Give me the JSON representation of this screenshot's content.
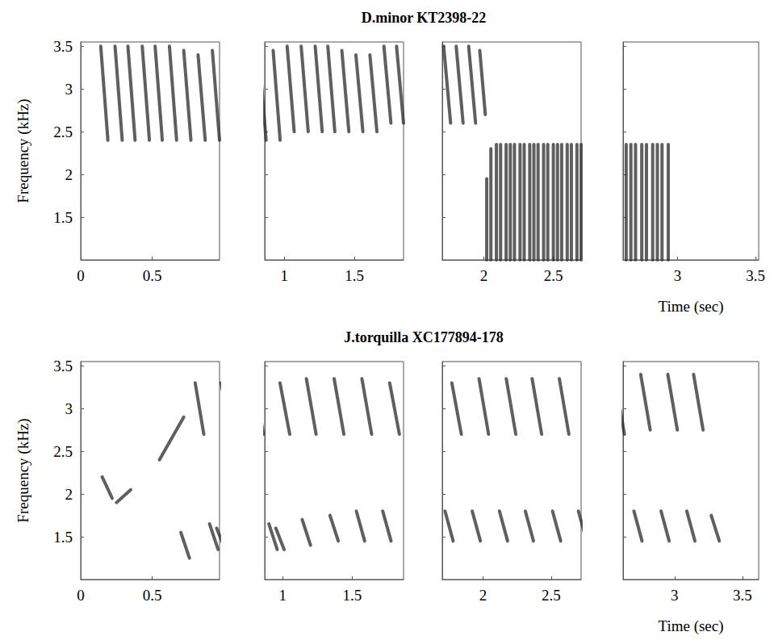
{
  "chart_data": [
    {
      "type": "spectrogram",
      "title": "D.minor KT2398-22",
      "xlabel": "Time (sec)",
      "ylabel": "Frequency (kHz)",
      "ylim": [
        1,
        3.55
      ],
      "yticks": [
        1.5,
        2,
        2.5,
        3,
        3.5
      ],
      "color": "#2a2a2a",
      "grid": false,
      "panels": [
        {
          "xlim": [
            0,
            0.97
          ],
          "xticks": [
            0,
            0.5
          ]
        },
        {
          "xlim": [
            0.86,
            1.85
          ],
          "xticks": [
            1,
            1.5
          ]
        },
        {
          "xlim": [
            1.7,
            2.7
          ],
          "xticks": [
            2,
            2.5
          ]
        },
        {
          "xlim": [
            2.65,
            3.52
          ],
          "xticks": [
            3,
            3.5
          ]
        }
      ],
      "syllables": [
        [
          0.14,
          3.5,
          0.19,
          2.4
        ],
        [
          0.24,
          3.5,
          0.29,
          2.4
        ],
        [
          0.33,
          3.5,
          0.38,
          2.4
        ],
        [
          0.43,
          3.5,
          0.48,
          2.4
        ],
        [
          0.52,
          3.5,
          0.57,
          2.4
        ],
        [
          0.62,
          3.5,
          0.67,
          2.4
        ],
        [
          0.72,
          3.45,
          0.77,
          2.4
        ],
        [
          0.82,
          3.4,
          0.87,
          2.4
        ],
        [
          0.92,
          3.45,
          0.97,
          2.4
        ],
        [
          1.02,
          3.5,
          1.07,
          2.5
        ],
        [
          1.12,
          3.5,
          1.17,
          2.5
        ],
        [
          1.22,
          3.5,
          1.27,
          2.5
        ],
        [
          1.31,
          3.5,
          1.36,
          2.5
        ],
        [
          1.41,
          3.45,
          1.46,
          2.5
        ],
        [
          1.51,
          3.4,
          1.56,
          2.5
        ],
        [
          1.61,
          3.4,
          1.66,
          2.5
        ],
        [
          1.71,
          3.5,
          1.76,
          2.6
        ],
        [
          1.8,
          3.5,
          1.85,
          2.6
        ],
        [
          1.89,
          3.5,
          1.94,
          2.6
        ],
        [
          1.97,
          3.45,
          2.01,
          2.7
        ],
        [
          2.02,
          1.0,
          2.02,
          1.95
        ],
        [
          2.05,
          1.0,
          2.05,
          2.3
        ],
        [
          2.09,
          1.0,
          2.09,
          2.35
        ],
        [
          2.12,
          1.0,
          2.12,
          2.35
        ],
        [
          2.16,
          1.0,
          2.16,
          2.35
        ],
        [
          2.19,
          1.0,
          2.19,
          2.35
        ],
        [
          2.22,
          1.0,
          2.22,
          2.35
        ],
        [
          2.26,
          1.0,
          2.26,
          2.35
        ],
        [
          2.29,
          1.0,
          2.29,
          2.35
        ],
        [
          2.33,
          1.0,
          2.33,
          2.35
        ],
        [
          2.36,
          1.0,
          2.36,
          2.35
        ],
        [
          2.39,
          1.0,
          2.39,
          2.35
        ],
        [
          2.43,
          1.0,
          2.43,
          2.35
        ],
        [
          2.46,
          1.0,
          2.46,
          2.35
        ],
        [
          2.5,
          1.0,
          2.5,
          2.35
        ],
        [
          2.53,
          1.0,
          2.53,
          2.35
        ],
        [
          2.56,
          1.0,
          2.56,
          2.35
        ],
        [
          2.6,
          1.0,
          2.6,
          2.35
        ],
        [
          2.63,
          1.0,
          2.63,
          2.35
        ],
        [
          2.67,
          1.0,
          2.67,
          2.35
        ],
        [
          2.7,
          1.0,
          2.7,
          2.35
        ],
        [
          2.73,
          1.0,
          2.73,
          2.35
        ],
        [
          2.77,
          1.0,
          2.77,
          2.35
        ],
        [
          2.8,
          1.0,
          2.8,
          2.35
        ],
        [
          2.84,
          1.0,
          2.84,
          2.35
        ],
        [
          2.87,
          1.0,
          2.87,
          2.35
        ],
        [
          2.9,
          1.0,
          2.9,
          2.35
        ],
        [
          2.94,
          1.0,
          2.94,
          2.35
        ]
      ]
    },
    {
      "type": "spectrogram",
      "title": "J.torquilla XC177894-178",
      "xlabel": "Time (sec)",
      "ylabel": "Frequency (kHz)",
      "ylim": [
        1,
        3.55
      ],
      "yticks": [
        1.5,
        2,
        2.5,
        3,
        3.5
      ],
      "color": "#2a2a2a",
      "grid": false,
      "panels": [
        {
          "xlim": [
            0,
            0.97
          ],
          "xticks": [
            0,
            0.5
          ]
        },
        {
          "xlim": [
            0.87,
            1.87
          ],
          "xticks": [
            1,
            1.5
          ]
        },
        {
          "xlim": [
            1.7,
            2.72
          ],
          "xticks": [
            2,
            2.5
          ]
        },
        {
          "xlim": [
            2.62,
            3.62
          ],
          "xticks": [
            3,
            3.5
          ]
        }
      ],
      "syllables": [
        [
          0.15,
          2.2,
          0.22,
          1.95
        ],
        [
          0.25,
          1.9,
          0.35,
          2.05
        ],
        [
          0.55,
          2.4,
          0.72,
          2.9
        ],
        [
          0.8,
          3.3,
          0.86,
          2.7
        ],
        [
          0.98,
          3.3,
          1.05,
          2.7
        ],
        [
          1.17,
          3.35,
          1.24,
          2.7
        ],
        [
          1.37,
          3.35,
          1.44,
          2.7
        ],
        [
          1.57,
          3.35,
          1.64,
          2.7
        ],
        [
          1.77,
          3.3,
          1.84,
          2.7
        ],
        [
          1.97,
          3.35,
          2.04,
          2.7
        ],
        [
          2.17,
          3.35,
          2.24,
          2.7
        ],
        [
          2.36,
          3.35,
          2.43,
          2.7
        ],
        [
          2.56,
          3.35,
          2.63,
          2.7
        ],
        [
          2.75,
          3.4,
          2.82,
          2.75
        ],
        [
          2.95,
          3.4,
          3.02,
          2.75
        ],
        [
          3.14,
          3.4,
          3.21,
          2.75
        ],
        [
          0.7,
          1.55,
          0.76,
          1.25
        ],
        [
          0.9,
          1.65,
          0.96,
          1.35
        ],
        [
          0.95,
          1.6,
          1.01,
          1.35
        ],
        [
          1.14,
          1.7,
          1.2,
          1.4
        ],
        [
          1.34,
          1.75,
          1.4,
          1.45
        ],
        [
          1.53,
          1.8,
          1.59,
          1.45
        ],
        [
          1.72,
          1.8,
          1.78,
          1.45
        ],
        [
          1.92,
          1.8,
          1.98,
          1.45
        ],
        [
          2.12,
          1.8,
          2.18,
          1.45
        ],
        [
          2.31,
          1.8,
          2.37,
          1.45
        ],
        [
          2.51,
          1.8,
          2.57,
          1.45
        ],
        [
          2.7,
          1.8,
          2.76,
          1.45
        ],
        [
          2.9,
          1.8,
          2.96,
          1.45
        ],
        [
          3.09,
          1.8,
          3.15,
          1.45
        ],
        [
          3.27,
          1.75,
          3.33,
          1.45
        ]
      ]
    }
  ]
}
